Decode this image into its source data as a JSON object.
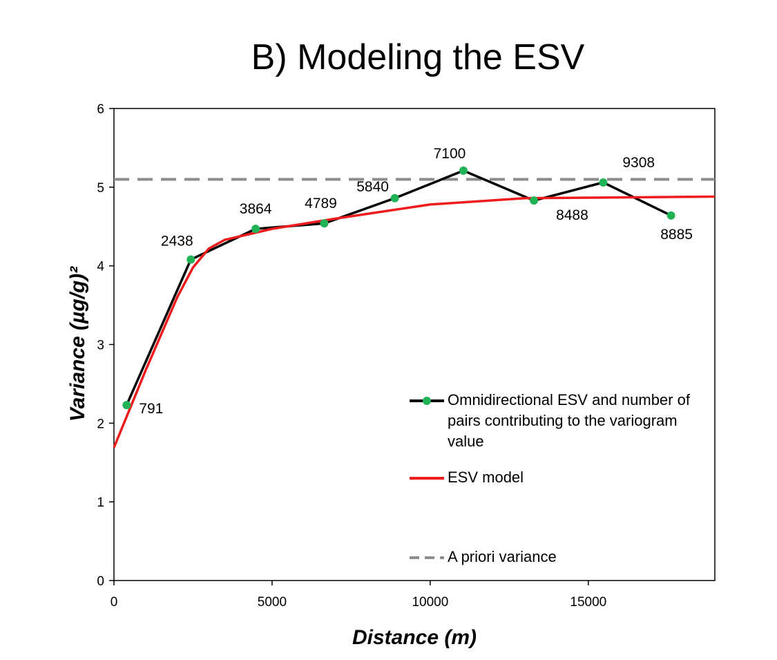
{
  "chart_data": {
    "type": "line",
    "title": "B) Modeling the ESV",
    "xlabel": "Distance (m)",
    "ylabel": "Variance (µg/g)²",
    "xlim": [
      0,
      19000
    ],
    "xticks": [
      0,
      5000,
      10000,
      15000
    ],
    "ylim": [
      0,
      6
    ],
    "yticks": [
      0,
      1,
      2,
      3,
      4,
      5,
      6
    ],
    "series": [
      {
        "name": "Omnidirectional ESV and number of pairs contributing to the variogram value",
        "color": "#000000",
        "marker_color": "#1fb356",
        "x": [
          400,
          2430,
          4480,
          6650,
          8880,
          11050,
          13280,
          15470,
          17615
        ],
        "values": [
          2.23,
          4.08,
          4.47,
          4.54,
          4.86,
          5.21,
          4.83,
          5.06,
          4.64
        ],
        "point_labels": [
          "791",
          "2438",
          "3864",
          "4789",
          "5840",
          "7100",
          "8488",
          "9308",
          "8885"
        ]
      },
      {
        "name": "ESV model",
        "color": "#ee1c1c",
        "x": [
          0,
          1000,
          2000,
          2500,
          3000,
          3500,
          5000,
          7000,
          10000,
          13000,
          19000
        ],
        "values": [
          1.69,
          2.67,
          3.6,
          3.98,
          4.22,
          4.33,
          4.47,
          4.6,
          4.78,
          4.86,
          4.88
        ]
      }
    ],
    "hline": {
      "name": "A priori variance",
      "value": 5.1,
      "color": "#8c8c8c",
      "style": "dashed"
    }
  }
}
